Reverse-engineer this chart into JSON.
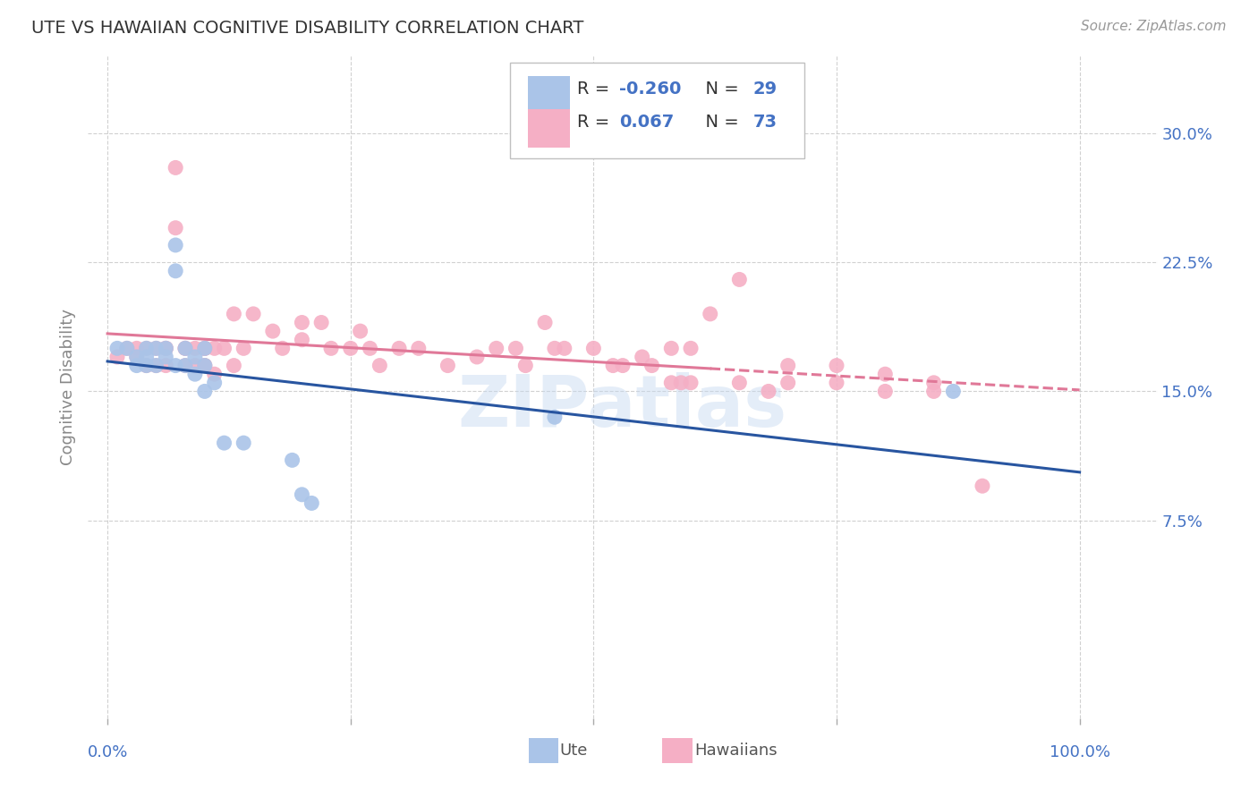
{
  "title": "UTE VS HAWAIIAN COGNITIVE DISABILITY CORRELATION CHART",
  "source": "Source: ZipAtlas.com",
  "ylabel": "Cognitive Disability",
  "yaxis_labels": [
    "7.5%",
    "15.0%",
    "22.5%",
    "30.0%"
  ],
  "yaxis_values": [
    0.075,
    0.15,
    0.225,
    0.3
  ],
  "ylim": [
    -0.04,
    0.345
  ],
  "xlim": [
    -0.02,
    1.08
  ],
  "legend_ute_R": "-0.260",
  "legend_ute_N": "29",
  "legend_haw_R": "0.067",
  "legend_haw_N": "73",
  "ute_color": "#aac4e8",
  "hawaiian_color": "#f5afc5",
  "ute_line_color": "#2855a0",
  "hawaiian_line_color": "#e07898",
  "watermark": "ZIPatlas",
  "ute_x": [
    0.01,
    0.02,
    0.03,
    0.03,
    0.04,
    0.04,
    0.04,
    0.05,
    0.05,
    0.06,
    0.06,
    0.07,
    0.07,
    0.07,
    0.08,
    0.08,
    0.09,
    0.09,
    0.1,
    0.1,
    0.1,
    0.11,
    0.12,
    0.14,
    0.19,
    0.2,
    0.21,
    0.46,
    0.87
  ],
  "ute_y": [
    0.175,
    0.175,
    0.17,
    0.165,
    0.175,
    0.17,
    0.165,
    0.175,
    0.165,
    0.175,
    0.17,
    0.235,
    0.22,
    0.165,
    0.175,
    0.165,
    0.16,
    0.17,
    0.175,
    0.165,
    0.15,
    0.155,
    0.12,
    0.12,
    0.11,
    0.09,
    0.085,
    0.135,
    0.15
  ],
  "haw_x": [
    0.01,
    0.02,
    0.03,
    0.03,
    0.04,
    0.04,
    0.05,
    0.05,
    0.06,
    0.06,
    0.06,
    0.07,
    0.07,
    0.08,
    0.08,
    0.08,
    0.09,
    0.09,
    0.1,
    0.1,
    0.1,
    0.1,
    0.1,
    0.11,
    0.11,
    0.12,
    0.13,
    0.13,
    0.14,
    0.15,
    0.17,
    0.18,
    0.2,
    0.2,
    0.22,
    0.23,
    0.25,
    0.26,
    0.27,
    0.28,
    0.3,
    0.32,
    0.35,
    0.38,
    0.4,
    0.42,
    0.43,
    0.46,
    0.5,
    0.53,
    0.56,
    0.58,
    0.59,
    0.6,
    0.62,
    0.65,
    0.7,
    0.75,
    0.8,
    0.85,
    0.45,
    0.47,
    0.52,
    0.55,
    0.58,
    0.6,
    0.65,
    0.68,
    0.7,
    0.75,
    0.8,
    0.85,
    0.9
  ],
  "haw_y": [
    0.17,
    0.175,
    0.175,
    0.17,
    0.175,
    0.165,
    0.175,
    0.165,
    0.175,
    0.175,
    0.165,
    0.28,
    0.245,
    0.175,
    0.175,
    0.165,
    0.175,
    0.165,
    0.175,
    0.175,
    0.165,
    0.175,
    0.165,
    0.175,
    0.16,
    0.175,
    0.195,
    0.165,
    0.175,
    0.195,
    0.185,
    0.175,
    0.19,
    0.18,
    0.19,
    0.175,
    0.175,
    0.185,
    0.175,
    0.165,
    0.175,
    0.175,
    0.165,
    0.17,
    0.175,
    0.175,
    0.165,
    0.175,
    0.175,
    0.165,
    0.165,
    0.175,
    0.155,
    0.175,
    0.195,
    0.215,
    0.165,
    0.165,
    0.16,
    0.155,
    0.19,
    0.175,
    0.165,
    0.17,
    0.155,
    0.155,
    0.155,
    0.15,
    0.155,
    0.155,
    0.15,
    0.15,
    0.095
  ]
}
